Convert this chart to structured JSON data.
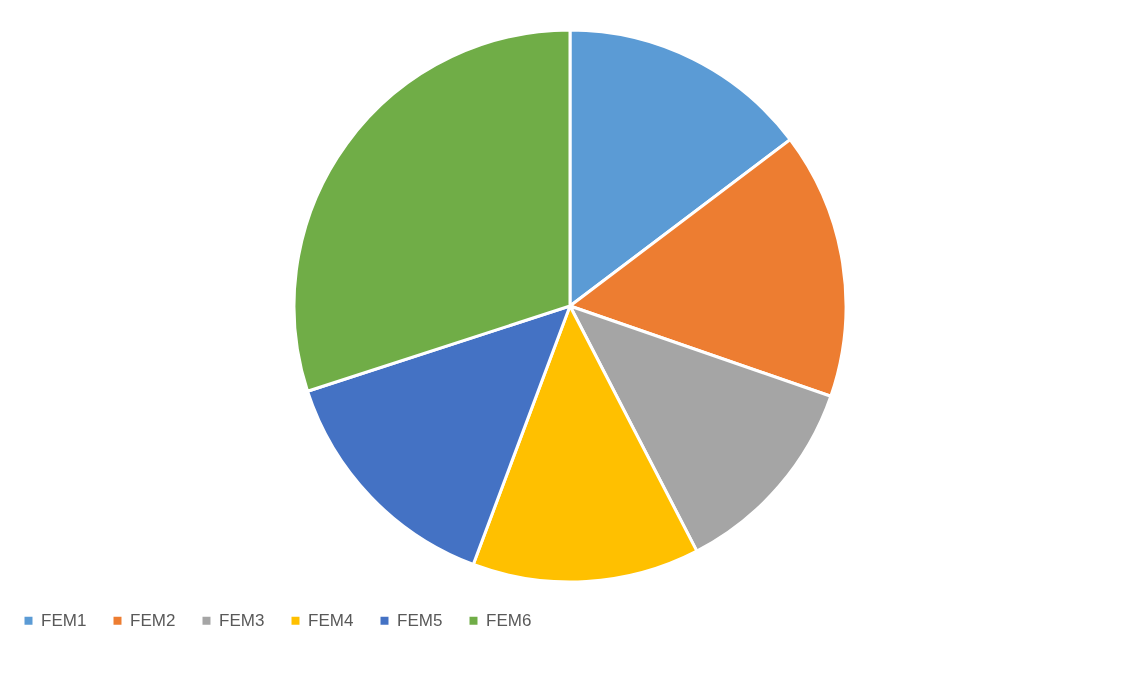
{
  "chart_data": {
    "type": "pie",
    "categories": [
      "FEM1",
      "FEM2",
      "FEM3",
      "FEM4",
      "FEM5",
      "FEM6"
    ],
    "values": [
      14.7,
      15.6,
      12.1,
      13.3,
      14.3,
      30
    ],
    "colors": [
      "#5b9bd5",
      "#ed7d31",
      "#a5a5a5",
      "#ffc000",
      "#4472c4",
      "#70ad47"
    ],
    "legend": "bottom"
  }
}
